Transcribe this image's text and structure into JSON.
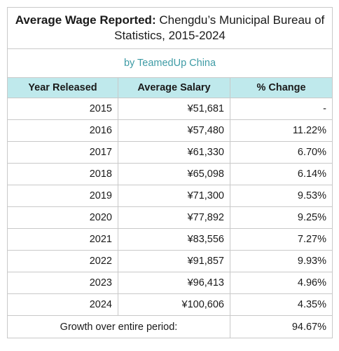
{
  "chart_data": {
    "type": "table",
    "title_bold": "Average Wage Reported:",
    "title_rest": " Chengdu’s Municipal Bureau of Statistics, 2015-2024",
    "subtitle": "by TeamedUp China",
    "columns": [
      "Year Released",
      "Average Salary",
      "% Change"
    ],
    "rows": [
      {
        "year": "2015",
        "salary": "¥51,681",
        "change": "-"
      },
      {
        "year": "2016",
        "salary": "¥57,480",
        "change": "11.22%"
      },
      {
        "year": "2017",
        "salary": "¥61,330",
        "change": "6.70%"
      },
      {
        "year": "2018",
        "salary": "¥65,098",
        "change": "6.14%"
      },
      {
        "year": "2019",
        "salary": "¥71,300",
        "change": "9.53%"
      },
      {
        "year": "2020",
        "salary": "¥77,892",
        "change": "9.25%"
      },
      {
        "year": "2021",
        "salary": "¥83,556",
        "change": "7.27%"
      },
      {
        "year": "2022",
        "salary": "¥91,857",
        "change": "9.93%"
      },
      {
        "year": "2023",
        "salary": "¥96,413",
        "change": "4.96%"
      },
      {
        "year": "2024",
        "salary": "¥100,606",
        "change": "4.35%"
      }
    ],
    "footer_label": "Growth over entire period:",
    "footer_value": "94.67%",
    "header_color": "#bfe9ec",
    "subtitle_color": "#3e9ba5"
  }
}
